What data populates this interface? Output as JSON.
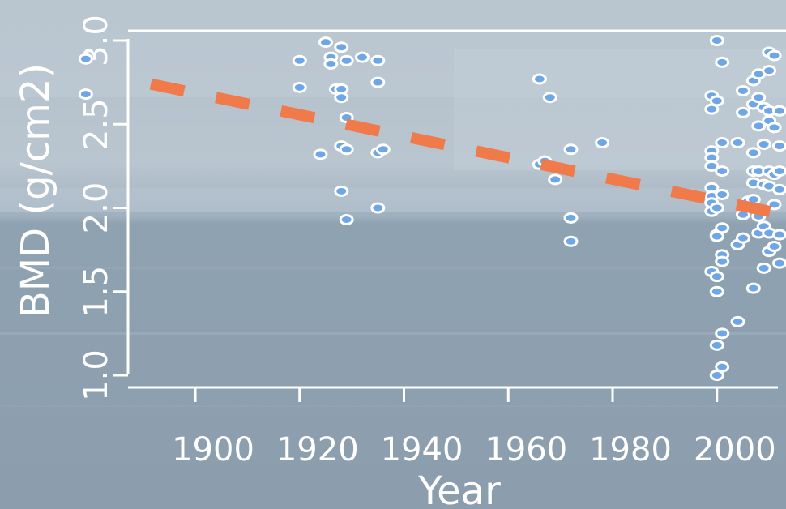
{
  "chart_data": {
    "type": "scatter",
    "title": "",
    "xlabel": "Year",
    "ylabel": "BMD (g/cm2)",
    "xlim": [
      1875,
      2010
    ],
    "ylim": [
      0.95,
      3.05
    ],
    "x_ticks": [
      1900,
      1920,
      1940,
      1960,
      1980,
      2000
    ],
    "y_ticks": [
      1.0,
      1.5,
      2.0,
      2.5,
      3.0
    ],
    "x_tick_labels": [
      "1900",
      "1920",
      "1940",
      "1960",
      "1980",
      "2000"
    ],
    "y_tick_labels": [
      "1.0",
      "1.5",
      "2.0",
      "2.5",
      "3.0"
    ],
    "grid": false,
    "colors": {
      "points_stroke": "#ffffff",
      "points_fill": "#6ea6e6",
      "trend": "#f07a4a",
      "axes": "#ffffff"
    },
    "points": [
      [
        1879,
        2.89
      ],
      [
        1879,
        2.68
      ],
      [
        1920,
        2.88
      ],
      [
        1920,
        2.72
      ],
      [
        1924,
        2.32
      ],
      [
        1925,
        2.99
      ],
      [
        1926,
        2.9
      ],
      [
        1926,
        2.86
      ],
      [
        1927,
        2.71
      ],
      [
        1928,
        2.96
      ],
      [
        1928,
        2.71
      ],
      [
        1928,
        2.66
      ],
      [
        1928,
        2.37
      ],
      [
        1928,
        2.1
      ],
      [
        1929,
        2.88
      ],
      [
        1929,
        2.54
      ],
      [
        1929,
        2.35
      ],
      [
        1929,
        1.93
      ],
      [
        1932,
        2.9
      ],
      [
        1935,
        2.88
      ],
      [
        1935,
        2.75
      ],
      [
        1935,
        2.33
      ],
      [
        1935,
        2.0
      ],
      [
        1936,
        2.35
      ],
      [
        1966,
        2.77
      ],
      [
        1966,
        2.26
      ],
      [
        1967,
        2.28
      ],
      [
        1968,
        2.66
      ],
      [
        1969,
        2.17
      ],
      [
        1972,
        2.35
      ],
      [
        1972,
        1.94
      ],
      [
        1972,
        1.8
      ],
      [
        1978,
        2.39
      ],
      [
        1999,
        2.67
      ],
      [
        1999,
        2.59
      ],
      [
        1999,
        2.34
      ],
      [
        1999,
        2.3
      ],
      [
        1999,
        2.25
      ],
      [
        1999,
        2.12
      ],
      [
        1999,
        2.07
      ],
      [
        1999,
        2.03
      ],
      [
        1999,
        1.98
      ],
      [
        1999,
        1.62
      ],
      [
        2000,
        3.0
      ],
      [
        2000,
        2.64
      ],
      [
        2000,
        2.0
      ],
      [
        2000,
        1.84
      ],
      [
        2000,
        1.83
      ],
      [
        2000,
        1.59
      ],
      [
        2000,
        1.5
      ],
      [
        2000,
        1.18
      ],
      [
        2000,
        1.0
      ],
      [
        2001,
        2.87
      ],
      [
        2001,
        2.39
      ],
      [
        2001,
        2.22
      ],
      [
        2001,
        2.08
      ],
      [
        2001,
        1.88
      ],
      [
        2001,
        1.72
      ],
      [
        2001,
        1.68
      ],
      [
        2001,
        1.25
      ],
      [
        2001,
        1.05
      ],
      [
        2004,
        2.39
      ],
      [
        2004,
        1.78
      ],
      [
        2004,
        1.32
      ],
      [
        2005,
        2.7
      ],
      [
        2005,
        2.57
      ],
      [
        2005,
        1.96
      ],
      [
        2005,
        1.82
      ],
      [
        2006,
        2.04
      ],
      [
        2007,
        2.76
      ],
      [
        2007,
        2.62
      ],
      [
        2007,
        2.33
      ],
      [
        2007,
        2.22
      ],
      [
        2007,
        2.15
      ],
      [
        2007,
        2.05
      ],
      [
        2007,
        1.52
      ],
      [
        2008,
        2.8
      ],
      [
        2008,
        2.66
      ],
      [
        2008,
        2.49
      ],
      [
        2008,
        2.22
      ],
      [
        2008,
        1.95
      ],
      [
        2008,
        1.85
      ],
      [
        2009,
        2.6
      ],
      [
        2009,
        2.38
      ],
      [
        2009,
        2.14
      ],
      [
        2009,
        1.89
      ],
      [
        2009,
        1.64
      ],
      [
        2010,
        2.93
      ],
      [
        2010,
        2.82
      ],
      [
        2010,
        2.58
      ],
      [
        2010,
        2.52
      ],
      [
        2010,
        2.22
      ],
      [
        2010,
        2.13
      ],
      [
        2010,
        1.85
      ],
      [
        2010,
        1.74
      ],
      [
        2011,
        2.91
      ],
      [
        2011,
        2.48
      ],
      [
        2011,
        2.2
      ],
      [
        2011,
        2.02
      ],
      [
        2011,
        1.77
      ],
      [
        2012,
        2.58
      ],
      [
        2012,
        2.37
      ],
      [
        2012,
        2.22
      ],
      [
        2012,
        2.11
      ],
      [
        2012,
        1.84
      ],
      [
        2012,
        1.67
      ]
    ],
    "trend_line": {
      "style": "dashed",
      "x": [
        1879,
        2013
      ],
      "y": [
        2.82,
        1.96
      ]
    }
  }
}
